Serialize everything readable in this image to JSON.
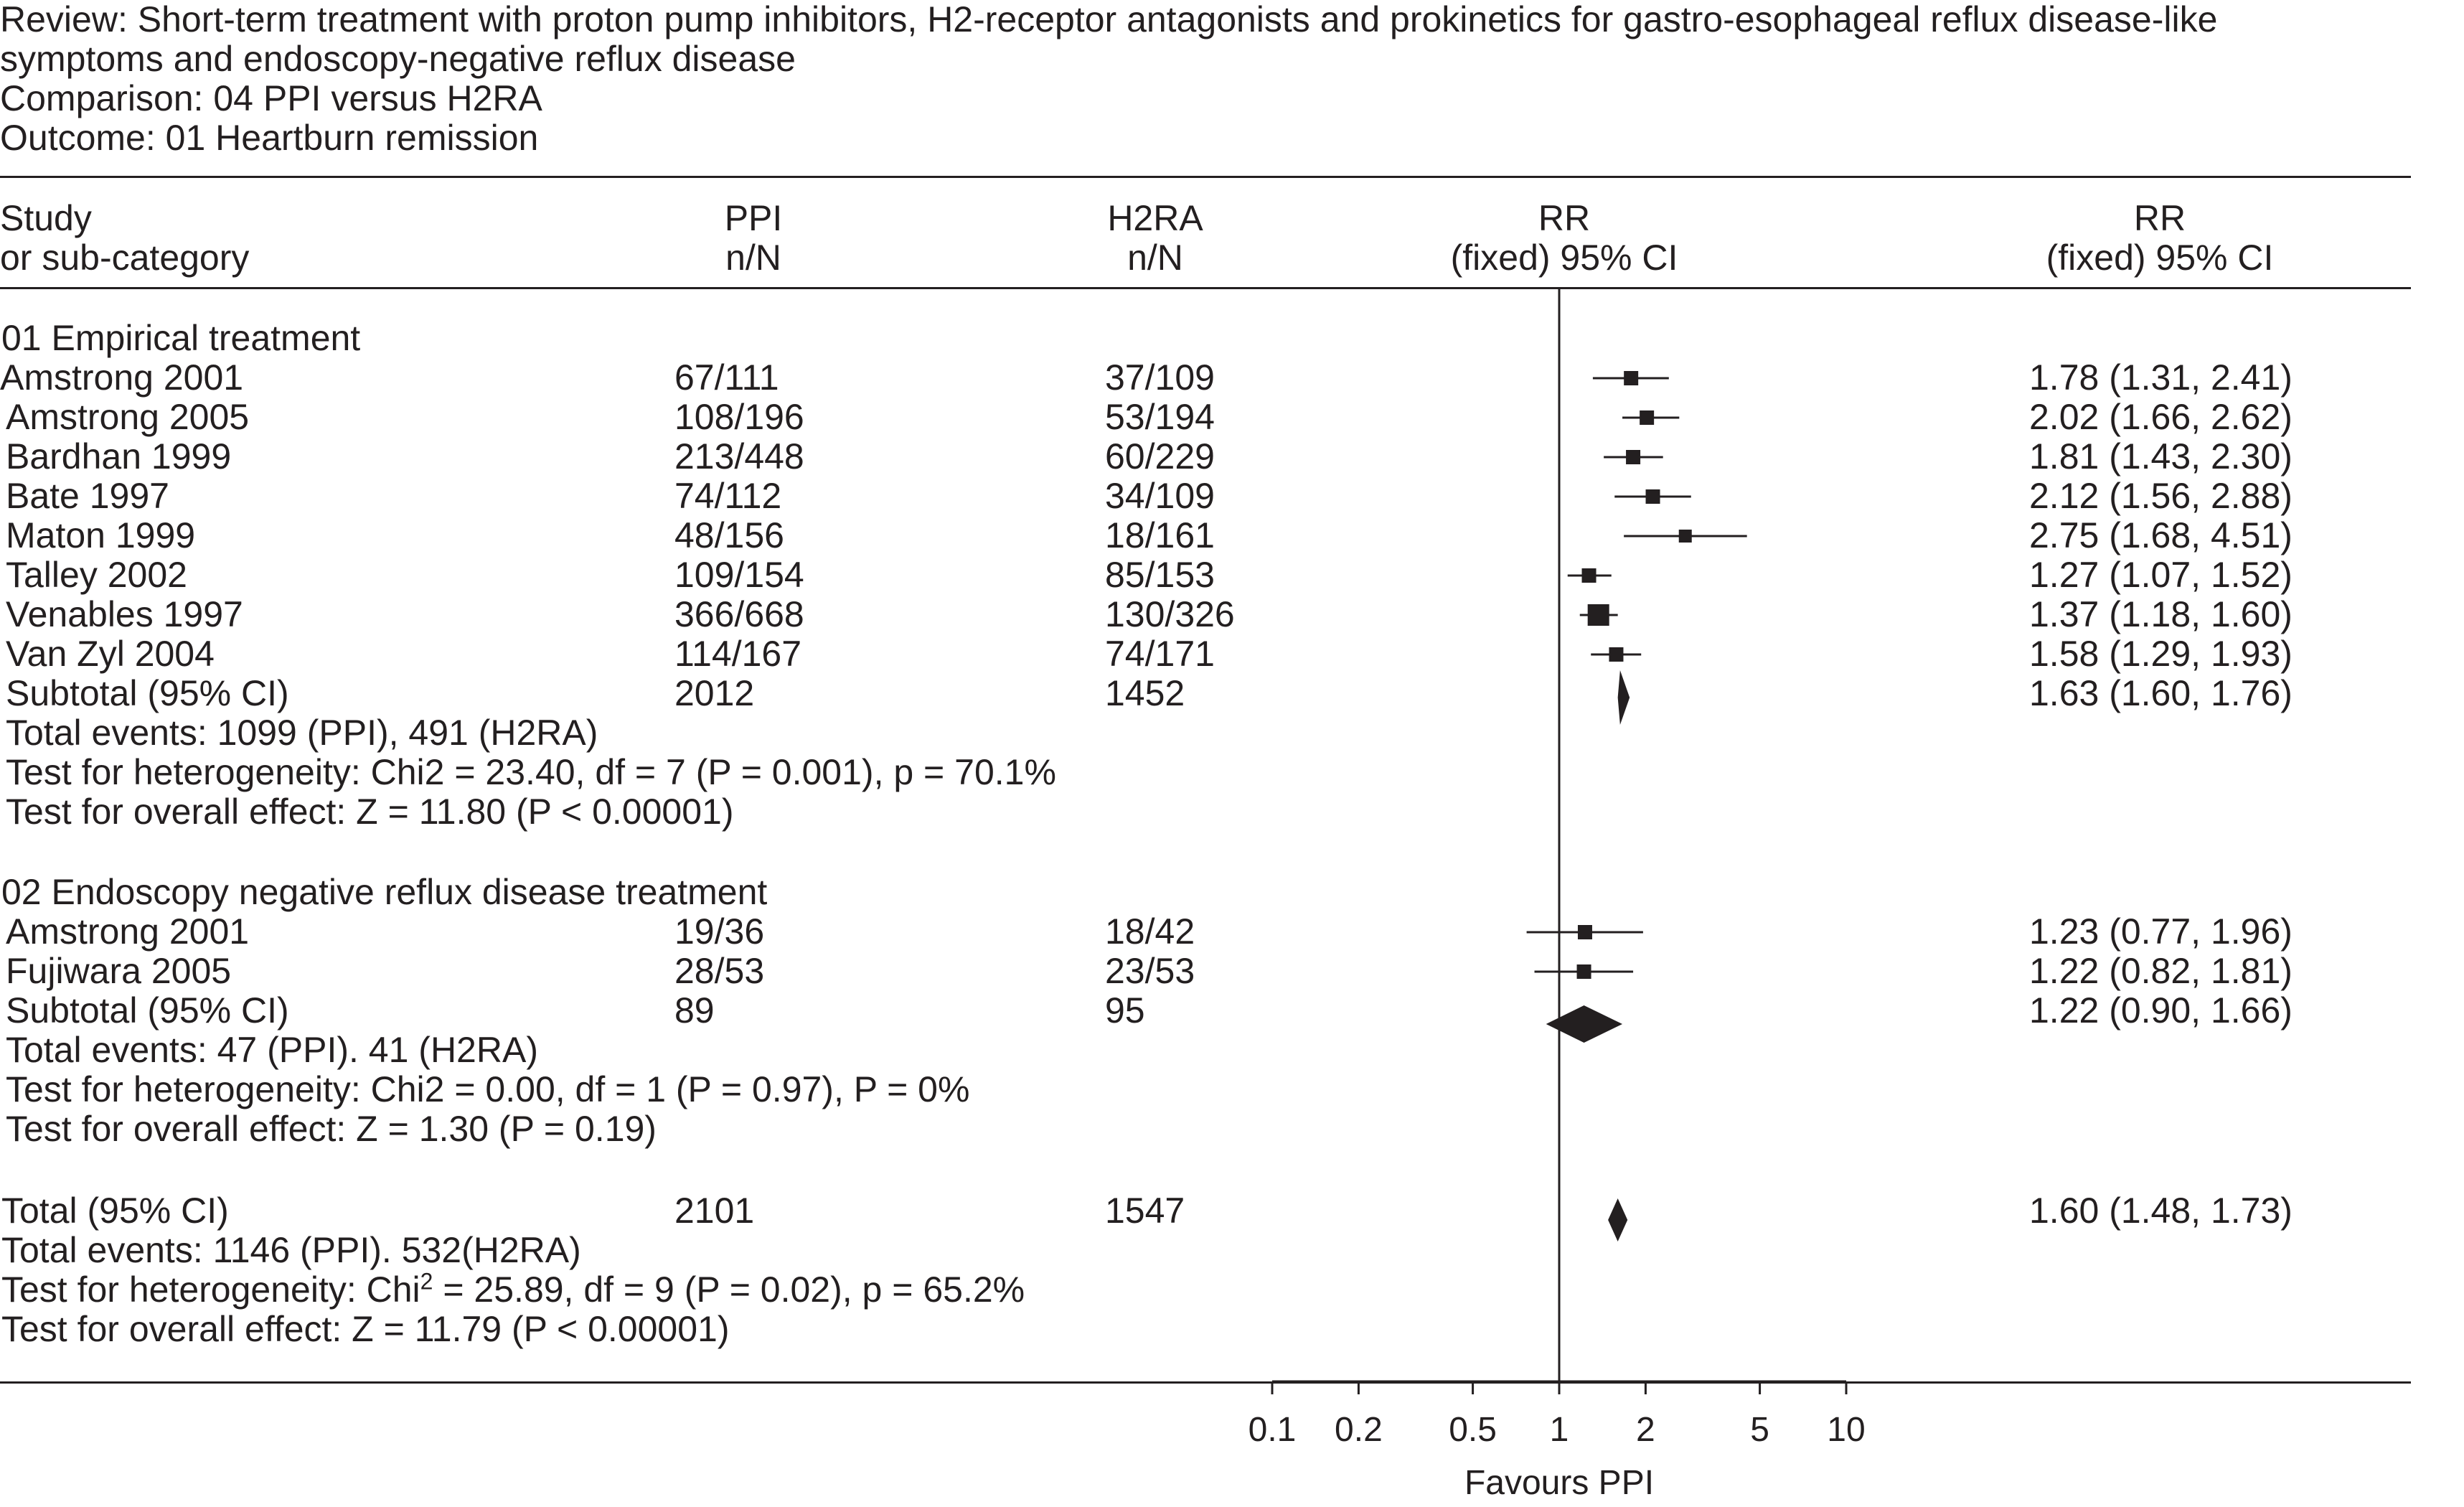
{
  "header": {
    "review_line1": "Review: Short-term treatment with proton pump inhibitors, H2-receptor antagonists and prokinetics for gastro-esophageal reflux disease-like",
    "review_line2": "symptoms and endoscopy-negative reflux disease",
    "comparison": "Comparison: 04 PPI versus H2RA",
    "outcome": "Outcome: 01 Heartburn remission"
  },
  "columns": {
    "study_line1": "Study",
    "study_line2": "or sub-category",
    "ppi_line1": "PPI",
    "ppi_line2": "n/N",
    "h2ra_line1": "H2RA",
    "h2ra_line2": "n/N",
    "plot_line1": "RR",
    "plot_line2": "(fixed) 95% CI",
    "rr_line1": "RR",
    "rr_line2": "(fixed) 95% CI"
  },
  "groups": [
    {
      "title": "01 Empirical treatment",
      "studies": [
        {
          "study": "Amstrong 2001",
          "ppi": "67/111",
          "h2ra": "37/109",
          "rr_text": "1.78 (1.31, 2.41)"
        },
        {
          "study": "Amstrong 2005",
          "ppi": "108/196",
          "h2ra": "53/194",
          "rr_text": "2.02 (1.66, 2.62)"
        },
        {
          "study": "Bardhan 1999",
          "ppi": "213/448",
          "h2ra": "60/229",
          "rr_text": "1.81 (1.43, 2.30)"
        },
        {
          "study": "Bate 1997",
          "ppi": "74/112",
          "h2ra": "34/109",
          "rr_text": "2.12 (1.56, 2.88)"
        },
        {
          "study": "Maton 1999",
          "ppi": "48/156",
          "h2ra": "18/161",
          "rr_text": "2.75 (1.68, 4.51)"
        },
        {
          "study": "Talley 2002",
          "ppi": "109/154",
          "h2ra": "85/153",
          "rr_text": "1.27 (1.07, 1.52)"
        },
        {
          "study": "Venables 1997",
          "ppi": "366/668",
          "h2ra": "130/326",
          "rr_text": "1.37 (1.18, 1.60)"
        },
        {
          "study": "Van Zyl 2004",
          "ppi": "114/167",
          "h2ra": "74/171",
          "rr_text": "1.58 (1.29, 1.93)"
        }
      ],
      "subtotal": {
        "label": "Subtotal (95% CI)",
        "ppi": "2012",
        "h2ra": "1452",
        "rr_text": "1.63 (1.60, 1.76)"
      },
      "notes": [
        "Total events: 1099 (PPI), 491 (H2RA)",
        "Test for heterogeneity: Chi2 = 23.40, df = 7 (P = 0.001), p = 70.1%",
        "Test for overall effect: Z = 11.80 (P < 0.00001)"
      ]
    },
    {
      "title": "02 Endoscopy negative reflux disease treatment",
      "studies": [
        {
          "study": "Amstrong 2001",
          "ppi": "19/36",
          "h2ra": "18/42",
          "rr_text": "1.23 (0.77, 1.96)"
        },
        {
          "study": "Fujiwara 2005",
          "ppi": "28/53",
          "h2ra": "23/53",
          "rr_text": "1.22 (0.82, 1.81)"
        }
      ],
      "subtotal": {
        "label": "Subtotal (95% CI)",
        "ppi": "89",
        "h2ra": "95",
        "rr_text": "1.22 (0.90, 1.66)"
      },
      "notes": [
        "Total events: 47 (PPI). 41 (H2RA)",
        "Test for heterogeneity: Chi2 = 0.00, df = 1 (P = 0.97), P = 0%",
        "Test for overall effect: Z = 1.30 (P = 0.19)"
      ]
    }
  ],
  "total": {
    "label": "Total (95% CI)",
    "ppi": "2101",
    "h2ra": "1547",
    "rr_text": "1.60 (1.48, 1.73)",
    "events": "Total events: 1146 (PPI). 532(H2RA)",
    "heterogeneity_prefix": "Test for heterogeneity: Chi",
    "heterogeneity_sup": "2",
    "heterogeneity_suffix": " = 25.89, df = 9 (P = 0.02), p = 65.2%",
    "overall": "Test for overall effect: Z = 11.79 (P < 0.00001)"
  },
  "axis": {
    "ticks": [
      "0.1",
      "0.2",
      "0.5",
      "1",
      "2",
      "5",
      "10"
    ],
    "label": "Favours PPI"
  },
  "chart_data": {
    "type": "forest",
    "scale": "log",
    "xlim": [
      0.1,
      10
    ],
    "reference_line": 1,
    "ticks": [
      0.1,
      0.2,
      0.5,
      1,
      2,
      5,
      10
    ],
    "xlabel": "Favours PPI",
    "studies": [
      {
        "group": 1,
        "study": "Amstrong 2001",
        "rr": 1.78,
        "lo": 1.31,
        "hi": 2.41
      },
      {
        "group": 1,
        "study": "Amstrong 2005",
        "rr": 2.02,
        "lo": 1.66,
        "hi": 2.62
      },
      {
        "group": 1,
        "study": "Bardhan 1999",
        "rr": 1.81,
        "lo": 1.43,
        "hi": 2.3
      },
      {
        "group": 1,
        "study": "Bate 1997",
        "rr": 2.12,
        "lo": 1.56,
        "hi": 2.88
      },
      {
        "group": 1,
        "study": "Maton 1999",
        "rr": 2.75,
        "lo": 1.68,
        "hi": 4.51
      },
      {
        "group": 1,
        "study": "Talley 2002",
        "rr": 1.27,
        "lo": 1.07,
        "hi": 1.52
      },
      {
        "group": 1,
        "study": "Venables 1997",
        "rr": 1.37,
        "lo": 1.18,
        "hi": 1.6
      },
      {
        "group": 1,
        "study": "Van Zyl 2004",
        "rr": 1.58,
        "lo": 1.29,
        "hi": 1.93
      },
      {
        "group": 2,
        "study": "Amstrong 2001",
        "rr": 1.23,
        "lo": 0.77,
        "hi": 1.96
      },
      {
        "group": 2,
        "study": "Fujiwara 2005",
        "rr": 1.22,
        "lo": 0.82,
        "hi": 1.81
      }
    ],
    "summaries": [
      {
        "label": "Subtotal 01 (95% CI)",
        "rr": 1.63,
        "lo": 1.6,
        "hi": 1.76
      },
      {
        "label": "Subtotal 02 (95% CI)",
        "rr": 1.22,
        "lo": 0.9,
        "hi": 1.66
      },
      {
        "label": "Total (95% CI)",
        "rr": 1.6,
        "lo": 1.48,
        "hi": 1.73
      }
    ]
  }
}
